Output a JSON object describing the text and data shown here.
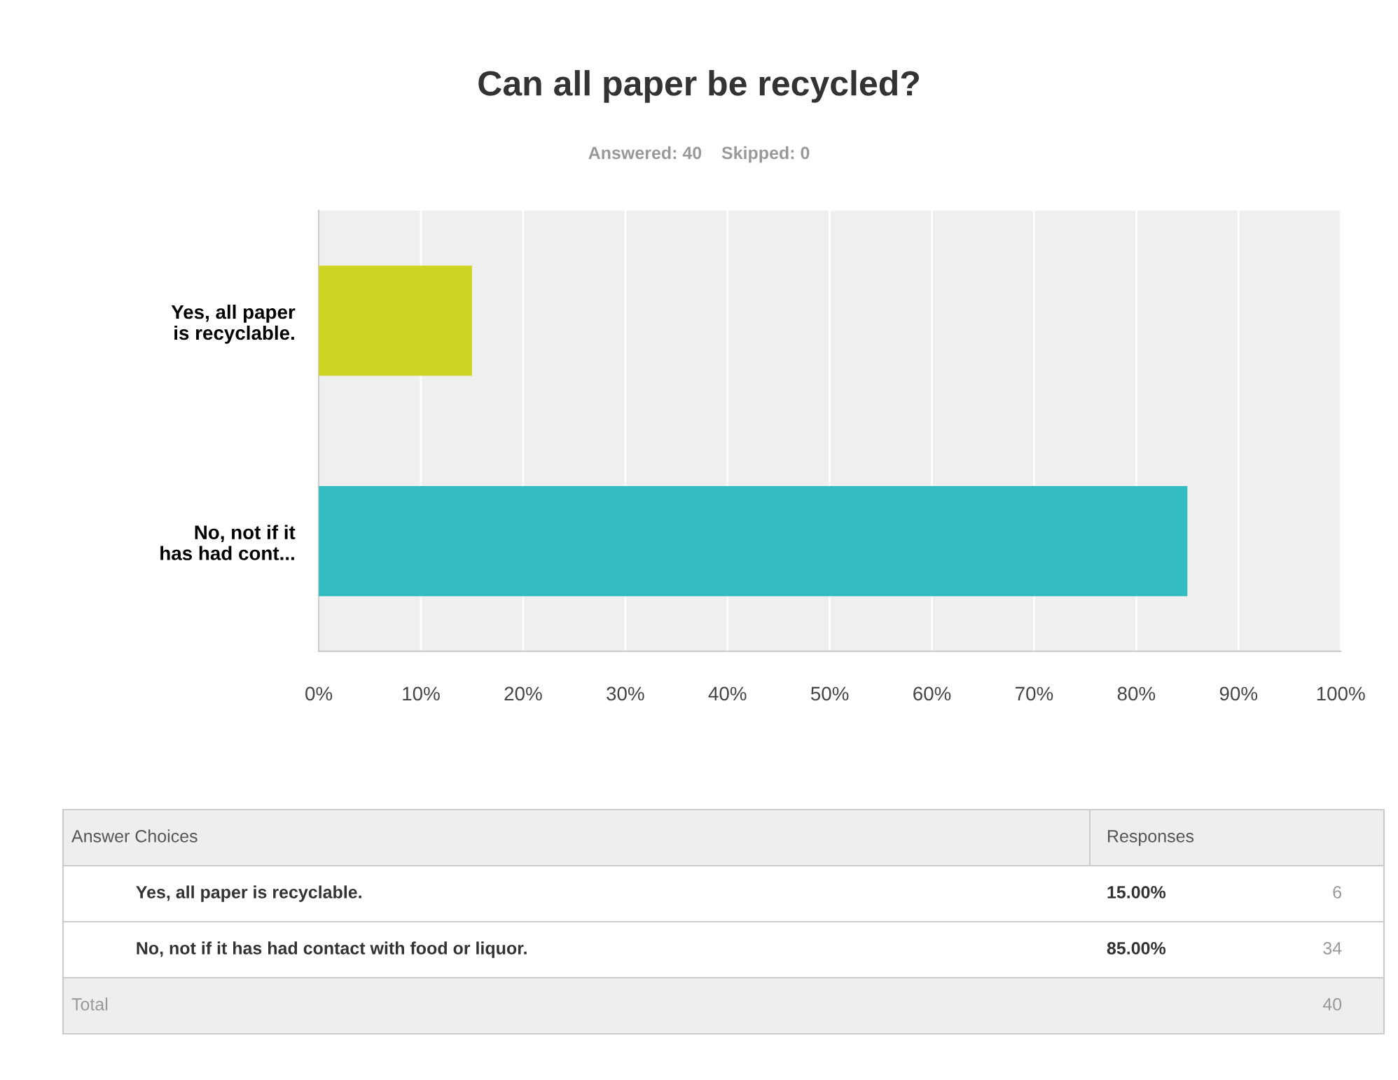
{
  "chart_data": {
    "type": "bar",
    "orientation": "horizontal",
    "title": "Can all paper be recycled?",
    "subtitle": "Answered: 40    Skipped: 0",
    "categories": [
      "Yes, all paper\nis recyclable.",
      "No, not if it\nhas had cont..."
    ],
    "values": [
      15,
      85
    ],
    "colors": [
      "#cdd422",
      "#32bcbf"
    ],
    "xlim": [
      0,
      100
    ],
    "xticks": [
      {
        "value": 0,
        "label": "0%"
      },
      {
        "value": 10,
        "label": "10%"
      },
      {
        "value": 20,
        "label": "20%"
      },
      {
        "value": 30,
        "label": "30%"
      },
      {
        "value": 40,
        "label": "40%"
      },
      {
        "value": 50,
        "label": "50%"
      },
      {
        "value": 60,
        "label": "60%"
      },
      {
        "value": 70,
        "label": "70%"
      },
      {
        "value": 80,
        "label": "80%"
      },
      {
        "value": 90,
        "label": "90%"
      },
      {
        "value": 100,
        "label": "100%"
      }
    ],
    "grid": "x",
    "legend": false,
    "annotations": [
      "Answer Choices",
      "Responses",
      "Yes, all paper is recyclable.",
      "15.00%",
      "6",
      "No, not if it has had contact with food or liquor.",
      "85.00%",
      "34",
      "Total",
      "40"
    ]
  }
}
